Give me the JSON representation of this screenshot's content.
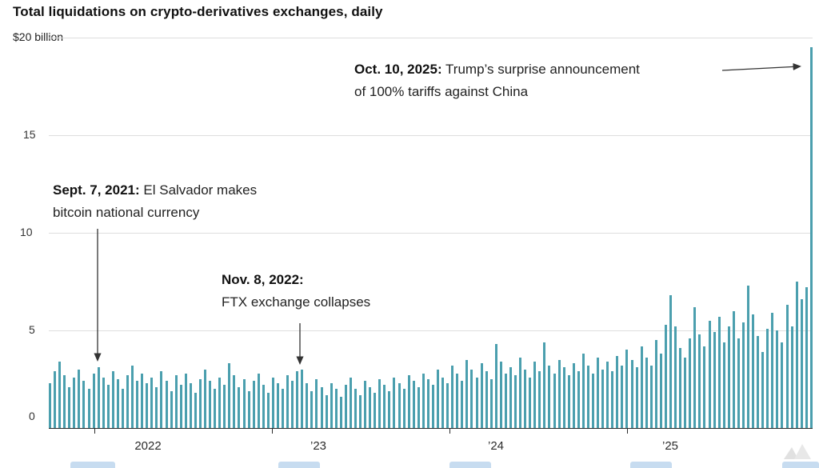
{
  "page": {
    "title": "Total liquidations on crypto-derivatives exchanges, daily"
  },
  "axis": {
    "y_top_label": "$20 billion",
    "y_ticks": {
      "t15": "15",
      "t10": "10",
      "t5": "5",
      "t0": "0"
    },
    "x_labels": {
      "x2022": "2022",
      "x23": "’23",
      "x24": "’24",
      "x25": "’25"
    }
  },
  "annotations": [
    {
      "date": "Sept. 7, 2021:",
      "line1_rest": " El Salvador makes",
      "line2": "bitcoin national currency"
    },
    {
      "date": "Nov. 8, 2022:",
      "line1_rest": "",
      "line2": "FTX exchange collapses"
    },
    {
      "date": "Oct. 10, 2025:",
      "line1_rest": " Trump’s surprise announcement",
      "line2": "of 100% tariffs against China"
    }
  ],
  "colors": {
    "bar": "#4b9fae",
    "grid": "#dedede",
    "axis": "#2b2b2b",
    "arrow": "#333333"
  },
  "chart_data": {
    "type": "bar",
    "title": "Total liquidations on crypto-derivatives exchanges, daily",
    "ylabel": "$ billion",
    "y_top_label": "$20 billion",
    "ylim": [
      0,
      20
    ],
    "y_ticks": [
      0,
      5,
      10,
      15,
      20
    ],
    "x_labels": [
      "2022",
      "'23",
      "'24",
      "'25"
    ],
    "x_range": "mid-2021 to Oct 2025, one bar per ~10 days",
    "grid": true,
    "unit": "billion USD liquidated per day",
    "values": [
      2.3,
      2.9,
      3.4,
      2.7,
      2.1,
      2.6,
      3.0,
      2.4,
      2.0,
      2.8,
      3.1,
      2.6,
      2.2,
      2.9,
      2.5,
      2.0,
      2.7,
      3.2,
      2.4,
      2.8,
      2.3,
      2.6,
      2.1,
      2.9,
      2.4,
      1.9,
      2.7,
      2.2,
      2.8,
      2.3,
      1.8,
      2.5,
      3.0,
      2.4,
      2.0,
      2.6,
      2.2,
      3.3,
      2.7,
      2.1,
      2.5,
      1.9,
      2.4,
      2.8,
      2.2,
      1.8,
      2.6,
      2.3,
      2.0,
      2.7,
      2.4,
      2.9,
      3.0,
      2.3,
      1.9,
      2.5,
      2.1,
      1.7,
      2.3,
      2.0,
      1.6,
      2.2,
      2.6,
      2.0,
      1.7,
      2.4,
      2.1,
      1.8,
      2.5,
      2.2,
      1.9,
      2.6,
      2.3,
      2.0,
      2.7,
      2.4,
      2.1,
      2.8,
      2.5,
      2.2,
      3.0,
      2.6,
      2.3,
      3.2,
      2.8,
      2.4,
      3.5,
      3.0,
      2.6,
      3.3,
      2.9,
      2.5,
      4.3,
      3.4,
      2.8,
      3.1,
      2.7,
      3.6,
      3.0,
      2.6,
      3.4,
      2.9,
      4.4,
      3.2,
      2.8,
      3.5,
      3.1,
      2.7,
      3.3,
      2.9,
      3.8,
      3.2,
      2.8,
      3.6,
      3.0,
      3.4,
      2.9,
      3.7,
      3.2,
      4.0,
      3.5,
      3.1,
      4.2,
      3.6,
      3.2,
      4.5,
      3.8,
      5.3,
      6.8,
      5.2,
      4.1,
      3.6,
      4.6,
      6.2,
      4.8,
      4.2,
      5.5,
      4.9,
      5.7,
      4.4,
      5.2,
      6.0,
      4.6,
      5.4,
      7.3,
      5.8,
      4.7,
      3.9,
      5.1,
      5.9,
      5.0,
      4.4,
      6.3,
      5.2,
      7.5,
      6.6,
      7.2,
      19.5
    ],
    "events": [
      {
        "index": 10,
        "label": "Sept. 7, 2021: El Salvador makes bitcoin national currency"
      },
      {
        "index": 52,
        "label": "Nov. 8, 2022: FTX exchange collapses"
      },
      {
        "index": 157,
        "label": "Oct. 10, 2025: Trump's surprise announcement of 100% tariffs against China"
      }
    ],
    "bar_color": "#4b9fae",
    "legend": "none"
  }
}
